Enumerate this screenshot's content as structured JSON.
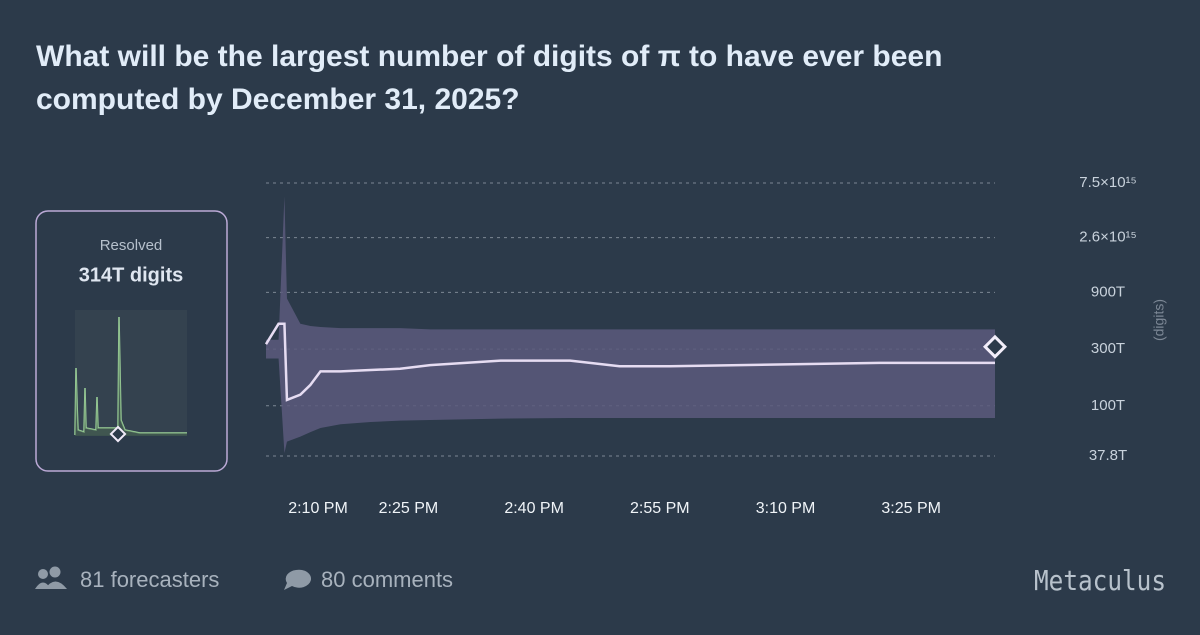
{
  "header": {
    "title_line1": "What will be the largest number of digits of π to have ever been",
    "title_line2": "computed by December 31, 2025?"
  },
  "chart_data": {
    "type": "line",
    "y_label": "(digits)",
    "log_y": true,
    "grid": true,
    "color": "#e6dcf2",
    "band_color": "#5c5a7c",
    "resolution": {
      "label": "Resolved",
      "value": 314000000000000,
      "value_label": "314T digits"
    },
    "xlim": [
      848,
      935
    ],
    "xticks": [
      {
        "value": 850,
        "label": "2:10 PM"
      },
      {
        "value": 865,
        "label": "2:25 PM"
      },
      {
        "value": 880,
        "label": "2:40 PM"
      },
      {
        "value": 895,
        "label": "2:55 PM"
      },
      {
        "value": 910,
        "label": "3:10 PM"
      },
      {
        "value": 925,
        "label": "3:25 PM"
      }
    ],
    "ylim": [
      37800000000000,
      7500000000000000
    ],
    "yticks": [
      {
        "value": 37800000000000,
        "label": "37.8T"
      },
      {
        "value": 100000000000000,
        "label": "100T"
      },
      {
        "value": 300000000000000,
        "label": "300T"
      },
      {
        "value": 900000000000000,
        "label": "900T"
      },
      {
        "value": 2600000000000000,
        "label": "2.6×10¹⁵"
      },
      {
        "value": 7500000000000000,
        "label": "7.5×10¹⁵"
      }
    ],
    "x": [
      848,
      849.5,
      850.2,
      850.5,
      852.1,
      853.3,
      854.5,
      856.9,
      860.5,
      864,
      867.6,
      876,
      884.3,
      890.2,
      896.2,
      921.2,
      935
    ],
    "values": [
      330000000000000,
      490000000000000,
      490000000000000,
      112000000000000,
      124000000000000,
      150000000000000,
      195000000000000,
      195000000000000,
      200000000000000,
      205000000000000,
      220000000000000,
      240000000000000,
      240000000000000,
      215000000000000,
      215000000000000,
      230000000000000,
      230000000000000
    ],
    "upper": [
      360000000000000,
      360000000000000,
      5800000000000000,
      800000000000000,
      490000000000000,
      470000000000000,
      460000000000000,
      450000000000000,
      450000000000000,
      450000000000000,
      440000000000000,
      440000000000000,
      440000000000000,
      440000000000000,
      440000000000000,
      440000000000000,
      440000000000000
    ],
    "lower": [
      250000000000000,
      250000000000000,
      40000000000000,
      50000000000000,
      55000000000000,
      60000000000000,
      65000000000000,
      70000000000000,
      73000000000000,
      75000000000000,
      76000000000000,
      78000000000000,
      79000000000000,
      79000000000000,
      79000000000000,
      79000000000000,
      79000000000000
    ]
  },
  "footer": {
    "forecasters": "81 forecasters",
    "comments": "80 comments",
    "brand": "Metaculus"
  }
}
